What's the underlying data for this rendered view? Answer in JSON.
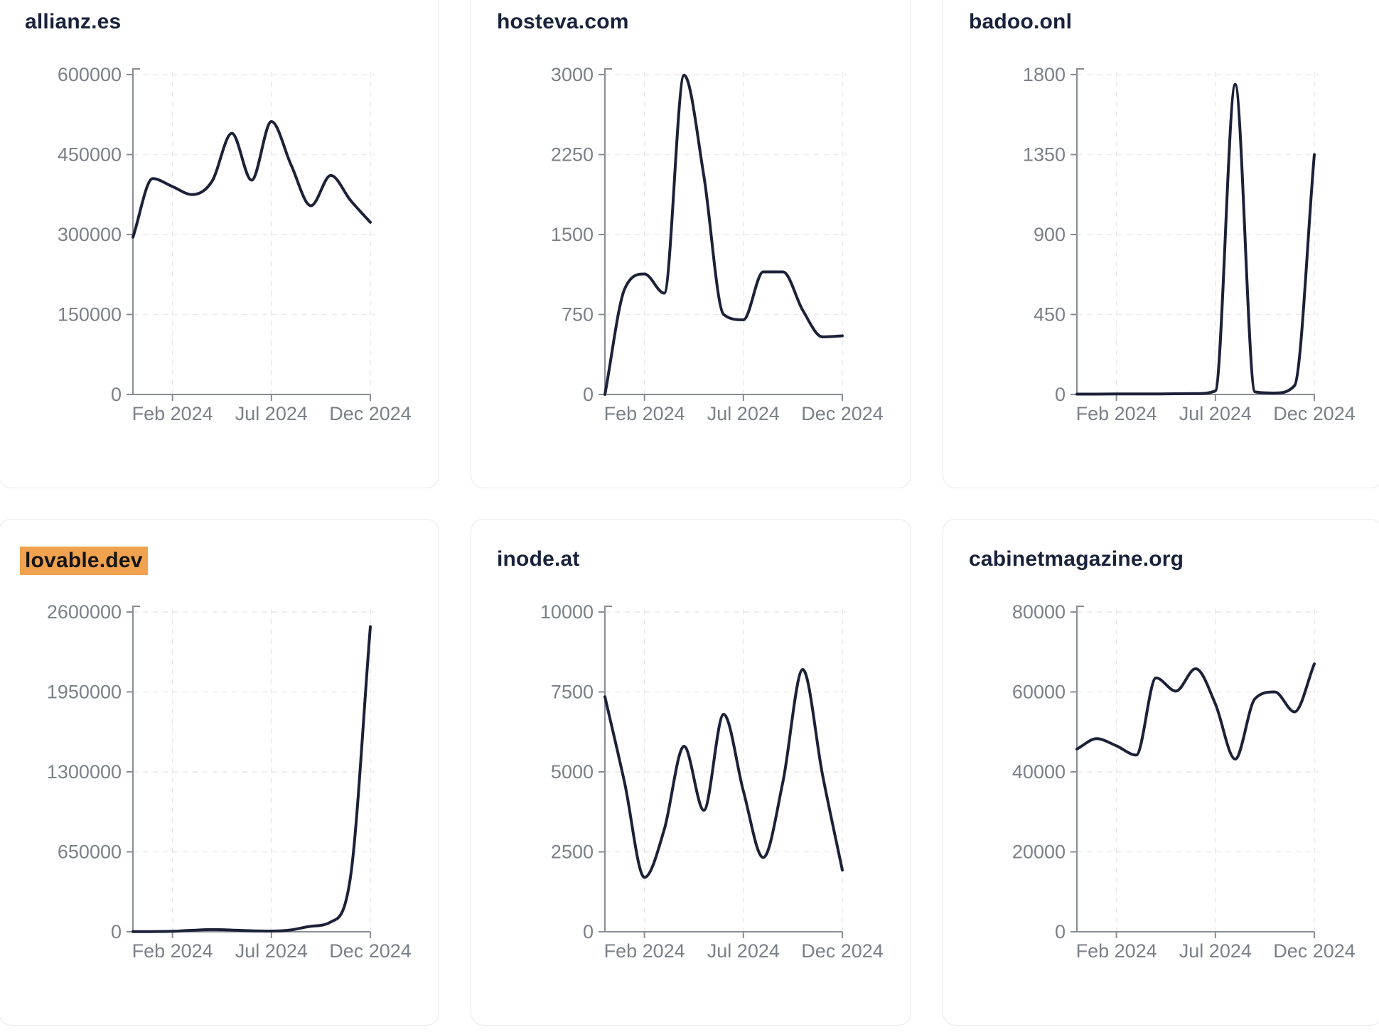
{
  "theme": {
    "page_bg": "#ffffff",
    "card_bg": "#ffffff",
    "card_border": "#e7e9ef",
    "title_color": "#19223c",
    "line_color": "#1b2138",
    "axis_color": "#898d94",
    "label_color": "#7b8088",
    "grid_color": "#e9e9ec",
    "highlight_bg": "#f0a24f",
    "highlight_text": "#141414"
  },
  "cards": [
    {
      "title": "allianz.es",
      "highlighted": false,
      "chart_data": {
        "type": "line",
        "x": [
          "Dec 2023",
          "Jan 2024",
          "Feb 2024",
          "Mar 2024",
          "Apr 2024",
          "May 2024",
          "Jun 2024",
          "Jul 2024",
          "Aug 2024",
          "Sep 2024",
          "Oct 2024",
          "Nov 2024",
          "Dec 2024"
        ],
        "values": [
          295000,
          405000,
          390000,
          375000,
          400000,
          490000,
          402000,
          512000,
          430000,
          354000,
          411000,
          364000,
          323000
        ],
        "y_ticks": [
          0,
          150000,
          300000,
          450000,
          600000
        ],
        "ylim": [
          0,
          600000
        ],
        "x_tick_labels": [
          "Feb 2024",
          "Jul 2024",
          "Dec 2024"
        ],
        "x_tick_indices": [
          2,
          7,
          12
        ],
        "grid": "dashed"
      }
    },
    {
      "title": "hosteva.com",
      "highlighted": false,
      "chart_data": {
        "type": "line",
        "x": [
          "Dec 2023",
          "Jan 2024",
          "Feb 2024",
          "Mar 2024",
          "Apr 2024",
          "May 2024",
          "Jun 2024",
          "Jul 2024",
          "Aug 2024",
          "Sep 2024",
          "Oct 2024",
          "Nov 2024",
          "Dec 2024"
        ],
        "values": [
          0,
          990,
          1130,
          950,
          2995,
          2050,
          750,
          700,
          1150,
          1150,
          790,
          540,
          550
        ],
        "y_ticks": [
          0,
          750,
          1500,
          2250,
          3000
        ],
        "ylim": [
          0,
          3000
        ],
        "x_tick_labels": [
          "Feb 2024",
          "Jul 2024",
          "Dec 2024"
        ],
        "x_tick_indices": [
          2,
          7,
          12
        ],
        "grid": "dashed"
      }
    },
    {
      "title": "badoo.onl",
      "highlighted": false,
      "chart_data": {
        "type": "line",
        "x": [
          "Dec 2023",
          "Jan 2024",
          "Feb 2024",
          "Mar 2024",
          "Apr 2024",
          "May 2024",
          "Jun 2024",
          "Jul 2024",
          "Aug 2024",
          "Sep 2024",
          "Oct 2024",
          "Nov 2024",
          "Dec 2024"
        ],
        "values": [
          2,
          2,
          3,
          3,
          3,
          4,
          5,
          20,
          1745,
          15,
          8,
          50,
          1350
        ],
        "y_ticks": [
          0,
          450,
          900,
          1350,
          1800
        ],
        "ylim": [
          0,
          1800
        ],
        "x_tick_labels": [
          "Feb 2024",
          "Jul 2024",
          "Dec 2024"
        ],
        "x_tick_indices": [
          2,
          7,
          12
        ],
        "grid": "dashed"
      }
    },
    {
      "title": "lovable.dev",
      "highlighted": true,
      "chart_data": {
        "type": "line",
        "x": [
          "Dec 2023",
          "Jan 2024",
          "Feb 2024",
          "Mar 2024",
          "Apr 2024",
          "May 2024",
          "Jun 2024",
          "Jul 2024",
          "Aug 2024",
          "Sep 2024",
          "Oct 2024",
          "Nov 2024",
          "Dec 2024"
        ],
        "values": [
          1000,
          2000,
          4000,
          12000,
          18000,
          14000,
          8000,
          6000,
          15000,
          45000,
          80000,
          450000,
          2480000
        ],
        "y_ticks": [
          0,
          650000,
          1300000,
          1950000,
          2600000
        ],
        "ylim": [
          0,
          2600000
        ],
        "x_tick_labels": [
          "Feb 2024",
          "Jul 2024",
          "Dec 2024"
        ],
        "x_tick_indices": [
          2,
          7,
          12
        ],
        "grid": "dashed"
      }
    },
    {
      "title": "inode.at",
      "highlighted": false,
      "chart_data": {
        "type": "line",
        "x": [
          "Dec 2023",
          "Jan 2024",
          "Feb 2024",
          "Mar 2024",
          "Apr 2024",
          "May 2024",
          "Jun 2024",
          "Jul 2024",
          "Aug 2024",
          "Sep 2024",
          "Oct 2024",
          "Nov 2024",
          "Dec 2024"
        ],
        "values": [
          7350,
          4650,
          1700,
          3200,
          5800,
          3800,
          6800,
          4400,
          2320,
          4700,
          8200,
          4900,
          1930
        ],
        "y_ticks": [
          0,
          2500,
          5000,
          7500,
          10000
        ],
        "ylim": [
          0,
          10000
        ],
        "x_tick_labels": [
          "Feb 2024",
          "Jul 2024",
          "Dec 2024"
        ],
        "x_tick_indices": [
          2,
          7,
          12
        ],
        "grid": "dashed"
      }
    },
    {
      "title": "cabinetmagazine.org",
      "highlighted": false,
      "chart_data": {
        "type": "line",
        "x": [
          "Dec 2023",
          "Jan 2024",
          "Feb 2024",
          "Mar 2024",
          "Apr 2024",
          "May 2024",
          "Jun 2024",
          "Jul 2024",
          "Aug 2024",
          "Sep 2024",
          "Oct 2024",
          "Nov 2024",
          "Dec 2024"
        ],
        "values": [
          45700,
          48300,
          46500,
          44200,
          63500,
          60200,
          65800,
          57000,
          43200,
          58300,
          60000,
          55000,
          67000
        ],
        "y_ticks": [
          0,
          20000,
          40000,
          60000,
          80000
        ],
        "ylim": [
          0,
          80000
        ],
        "x_tick_labels": [
          "Feb 2024",
          "Jul 2024",
          "Dec 2024"
        ],
        "x_tick_indices": [
          2,
          7,
          12
        ],
        "grid": "dashed"
      }
    }
  ]
}
